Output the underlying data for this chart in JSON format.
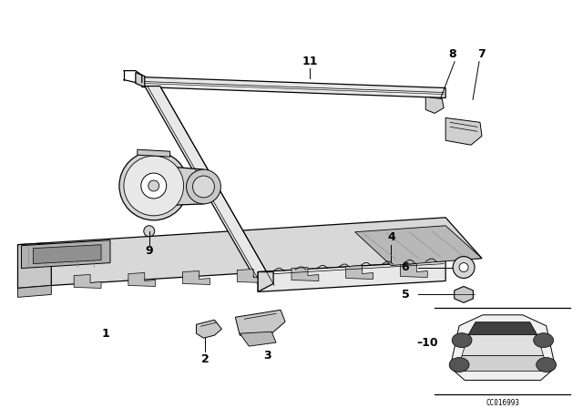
{
  "background_color": "#ffffff",
  "fig_width": 6.4,
  "fig_height": 4.48,
  "dpi": 100,
  "part_color": "#000000",
  "label_fontsize": 9,
  "line_color": "#000000"
}
